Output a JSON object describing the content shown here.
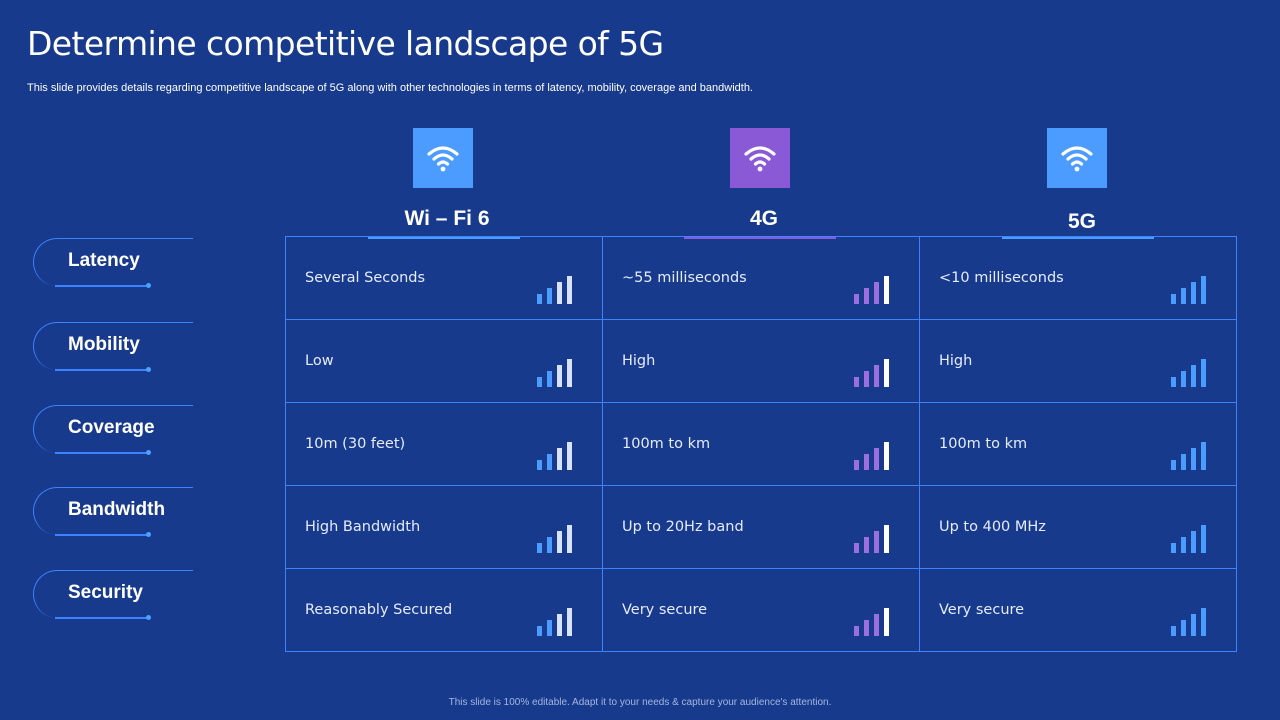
{
  "title": "Determine competitive landscape of 5G",
  "subtitle": "This slide provides details regarding competitive landscape of 5G along with other technologies in terms of latency, mobility, coverage and bandwidth.",
  "footer": "This slide is 100% editable. Adapt it to your needs & capture your audience's attention.",
  "icon": "wifi-icon",
  "technologies": [
    {
      "name": "Wi – Fi 6",
      "color": "#4c9bff",
      "bar_colors": [
        "#4c9bff",
        "#4c9bff",
        "#d9e3ff",
        "#d9e3ff"
      ]
    },
    {
      "name": "4G",
      "color": "#8a5ad6",
      "bar_colors": [
        "#9b6fe0",
        "#9b6fe0",
        "#9b6fe0",
        "#ffffff"
      ]
    },
    {
      "name": "5G",
      "color": "#4c9bff",
      "bar_colors": [
        "#4c9bff",
        "#4c9bff",
        "#4c9bff",
        "#4c9bff"
      ]
    }
  ],
  "rows": [
    {
      "label": "Latency",
      "values": [
        "Several Seconds",
        "~55 milliseconds",
        "<10 milliseconds"
      ]
    },
    {
      "label": "Mobility",
      "values": [
        "Low",
        "High",
        "High"
      ]
    },
    {
      "label": "Coverage",
      "values": [
        "10m (30 feet)",
        "100m to km",
        "100m to km"
      ]
    },
    {
      "label": "Bandwidth",
      "values": [
        "High Bandwidth",
        "Up to 20Hz band",
        "Up to 400 MHz"
      ]
    },
    {
      "label": "Security",
      "values": [
        "Reasonably Secured",
        "Very secure",
        "Very secure"
      ]
    }
  ]
}
